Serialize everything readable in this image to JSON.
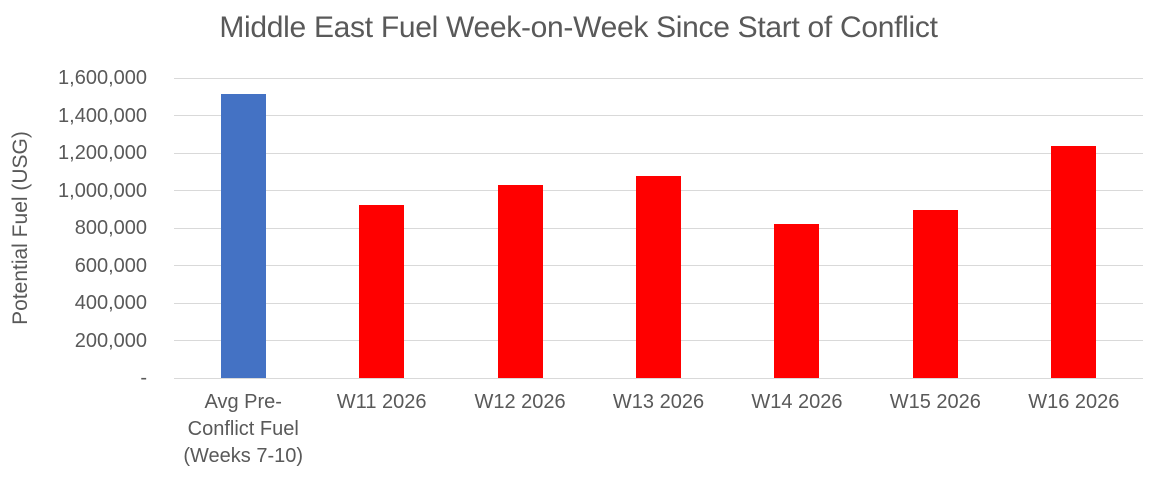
{
  "chart_data": {
    "type": "bar",
    "title": "Middle East Fuel Week-on-Week Since Start of Conflict",
    "xlabel": "",
    "ylabel": "Potential Fuel (USG)",
    "categories": [
      "Avg Pre-Conflict Fuel (Weeks 7-10)",
      "W11 2026",
      "W12 2026",
      "W13 2026",
      "W14 2026",
      "W15 2026",
      "W16 2026"
    ],
    "values": [
      1515000,
      925000,
      1030000,
      1075000,
      820000,
      895000,
      1240000
    ],
    "bar_colors": [
      "#4472C4",
      "#FF0000",
      "#FF0000",
      "#FF0000",
      "#FF0000",
      "#FF0000",
      "#FF0000"
    ],
    "ylim": [
      0,
      1600000
    ],
    "ytick_interval": 200000,
    "ytick_labels": [
      "1,600,000",
      "1,400,000",
      "1,200,000",
      "1,000,000",
      "800,000",
      "600,000",
      "400,000",
      "200,000",
      "-"
    ],
    "grid": true,
    "legend": false,
    "colors": {
      "text": "#595959",
      "gridline": "#D9D9D9",
      "background": "#FFFFFF",
      "pre_conflict_bar": "#4472C4",
      "conflict_bar": "#FF0000"
    }
  }
}
